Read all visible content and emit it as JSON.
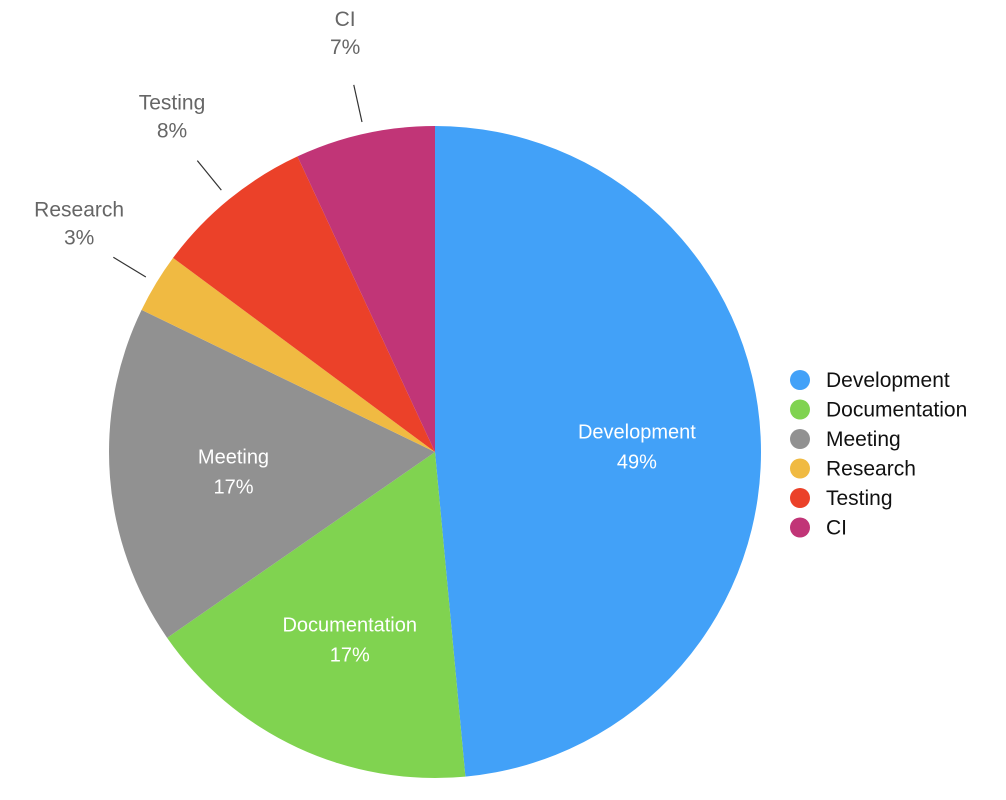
{
  "chart_data": {
    "type": "pie",
    "title": "",
    "start_angle_deg": 0,
    "direction": "clockwise",
    "legend_position": "right",
    "slices": [
      {
        "label": "Development",
        "value": 49,
        "display": "49%",
        "color": "#42A1F8",
        "label_placement": "inside"
      },
      {
        "label": "Documentation",
        "value": 17,
        "display": "17%",
        "color": "#80D350",
        "label_placement": "inside"
      },
      {
        "label": "Meeting",
        "value": 17,
        "display": "17%",
        "color": "#919191",
        "label_placement": "inside"
      },
      {
        "label": "Research",
        "value": 3,
        "display": "3%",
        "color": "#F0BA42",
        "label_placement": "outside"
      },
      {
        "label": "Testing",
        "value": 8,
        "display": "8%",
        "color": "#EB4129",
        "label_placement": "outside"
      },
      {
        "label": "CI",
        "value": 7,
        "display": "7%",
        "color": "#C13577",
        "label_placement": "outside"
      }
    ]
  }
}
